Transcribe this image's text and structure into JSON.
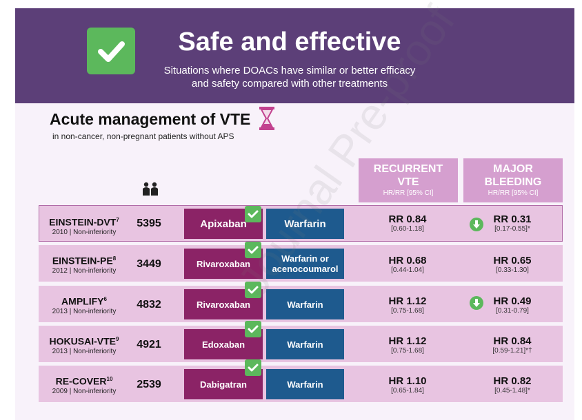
{
  "header": {
    "title": "Safe and effective",
    "subtitle_line1": "Situations where DOACs have similar or better efficacy",
    "subtitle_line2": "and safety compared with other treatments",
    "check_icon": "check-icon"
  },
  "section": {
    "title": "Acute management of VTE",
    "subtitle": "in non-cancer, non-pregnant patients without APS",
    "title_icon": "hourglass-icon",
    "count_icon": "people-icon"
  },
  "columns": {
    "recurrent_line1": "RECURRENT",
    "recurrent_line2": "VTE",
    "recurrent_sub": "HR/RR [95% CI]",
    "bleeding_line1": "MAJOR",
    "bleeding_line2": "BLEEDING",
    "bleeding_sub": "HR/RR [95% CI]"
  },
  "rows": [
    {
      "trial": "EINSTEIN-DVT",
      "ref": "7",
      "meta": "2010 | Non-inferiority",
      "n": "5395",
      "drug": "Apixaban",
      "comparator": "Warfarin",
      "vte": "RR 0.84",
      "vte_ci": "[0.60-1.18]",
      "bleed": "RR 0.31",
      "bleed_ci": "[0.17-0.55]*"
    },
    {
      "trial": "EINSTEIN-PE",
      "ref": "8",
      "meta": "2012 | Non-inferiority",
      "n": "3449",
      "drug": "Rivaroxaban",
      "comparator": "Warfarin or acenocoumarol",
      "vte": "HR 0.68",
      "vte_ci": "[0.44-1.04]",
      "bleed": "HR 0.65",
      "bleed_ci": "[0.33-1.30]"
    },
    {
      "trial": "AMPLIFY",
      "ref": "6",
      "meta": "2013 | Non-inferiority",
      "n": "4832",
      "drug": "Rivaroxaban",
      "comparator": "Warfarin",
      "vte": "HR 1.12",
      "vte_ci": "[0.75-1.68]",
      "bleed": "HR 0.49",
      "bleed_ci": "[0.31-0.79]"
    },
    {
      "trial": "HOKUSAI-VTE",
      "ref": "9",
      "meta": "2013 | Non-inferiority",
      "n": "4921",
      "drug": "Edoxaban",
      "comparator": "Warfarin",
      "vte": "HR 1.12",
      "vte_ci": "[0.75-1.68]",
      "bleed": "HR 0.84",
      "bleed_ci": "[0.59-1.21]*†"
    },
    {
      "trial": "RE-COVER",
      "ref": "10",
      "meta": "2009 | Non-inferiority",
      "n": "2539",
      "drug": "Dabigatran",
      "comparator": "Warfarin",
      "vte": "HR 1.10",
      "vte_ci": "[0.65-1.84]",
      "bleed": "HR 0.82",
      "bleed_ci": "[0.45-1.48]*"
    }
  ],
  "watermark": "Journal Pre-proof",
  "colors": {
    "header": "#5c3f78",
    "drug": "#8b2366",
    "comparator": "#1e5a8e",
    "row": "#e8c4e1",
    "column_header": "#d59fcf",
    "check": "#5cb85c"
  }
}
